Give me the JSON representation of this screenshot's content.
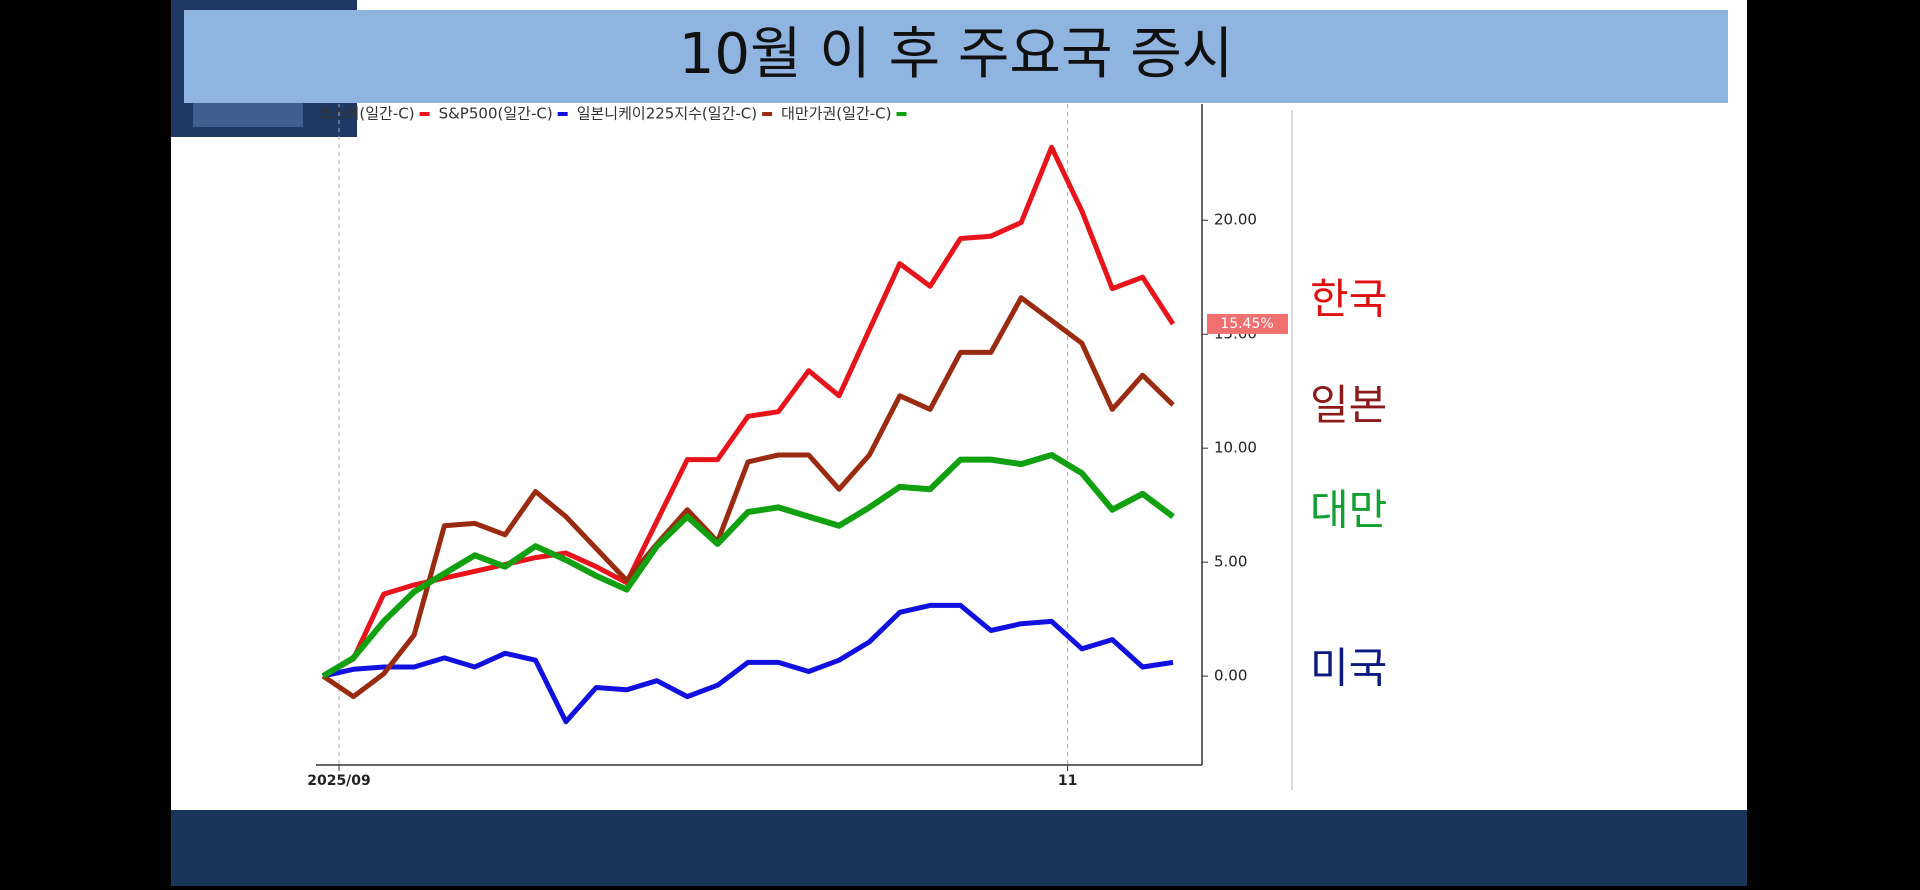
{
  "chart_data": {
    "type": "line",
    "title": "10월 이 후 주요국 증시",
    "categories": [
      "2025/09",
      null,
      null,
      null,
      null,
      null,
      null,
      null,
      null,
      null,
      null,
      null,
      null,
      null,
      null,
      null,
      null,
      null,
      null,
      null,
      null,
      null,
      null,
      null,
      "11",
      null,
      null,
      null,
      null
    ],
    "series": [
      {
        "name": "코스피(일간-C)",
        "color": "#e8141c",
        "values": [
          0,
          0.75,
          3.6,
          4.0,
          4.3,
          4.6,
          4.9,
          5.2,
          5.4,
          4.8,
          4.1,
          6.8,
          9.5,
          9.5,
          11.4,
          11.6,
          13.4,
          12.3,
          15.2,
          18.1,
          17.1,
          19.2,
          19.3,
          19.9,
          23.2,
          20.4,
          17.0,
          17.5,
          15.45
        ],
        "value_labels": [
          null,
          null,
          null,
          null,
          null,
          null,
          null,
          null,
          null,
          null,
          null,
          null,
          null,
          null,
          null,
          null,
          null,
          null,
          null,
          null,
          null,
          null,
          null,
          null,
          null,
          null,
          null,
          null,
          "15.45%"
        ]
      },
      {
        "name": "S&P500(일간-C)",
        "color": "#1010e0",
        "values": [
          0,
          0.3,
          0.4,
          0.4,
          0.8,
          0.4,
          1.0,
          0.7,
          -2.0,
          -0.5,
          -0.6,
          -0.2,
          -0.9,
          -0.4,
          0.6,
          0.6,
          0.2,
          0.7,
          1.5,
          2.8,
          3.1,
          3.1,
          2.0,
          2.3,
          2.4,
          1.2,
          1.6,
          0.4,
          0.6
        ]
      },
      {
        "name": "일본니케이225지수(일간-C)",
        "color": "#9a2a10",
        "values": [
          0,
          -0.9,
          0.1,
          1.8,
          6.6,
          6.7,
          6.2,
          8.1,
          7.0,
          5.6,
          4.2,
          5.8,
          7.3,
          5.9,
          9.4,
          9.7,
          9.7,
          8.2,
          9.7,
          12.3,
          11.7,
          14.2,
          14.2,
          16.6,
          15.6,
          14.6,
          11.7,
          13.2,
          11.9
        ]
      },
      {
        "name": "대만가권(일간-C)",
        "color": "#10a010",
        "values": [
          0,
          0.8,
          2.4,
          3.7,
          4.5,
          5.3,
          4.8,
          5.7,
          5.1,
          4.4,
          3.8,
          5.7,
          7.0,
          5.8,
          7.2,
          7.4,
          7.0,
          6.6,
          7.4,
          8.3,
          8.2,
          9.5,
          9.5,
          9.3,
          9.7,
          8.9,
          7.3,
          8.0,
          7.0
        ]
      }
    ],
    "ylim": [
      -3.9,
      25.1
    ],
    "yticks": [
      {
        "value": 0,
        "label": "0.00"
      },
      {
        "value": 5,
        "label": "5.00"
      },
      {
        "value": 10,
        "label": "10.00"
      },
      {
        "value": 15,
        "label": "15.00"
      },
      {
        "value": 20,
        "label": "20.00"
      }
    ],
    "grid": "x",
    "annotations": [
      {
        "text": "한국",
        "color": "#e01010"
      },
      {
        "text": "일본",
        "color": "#8b1a1a"
      },
      {
        "text": "대만",
        "color": "#12a030"
      },
      {
        "text": "미국",
        "color": "#0a1a80"
      }
    ]
  }
}
